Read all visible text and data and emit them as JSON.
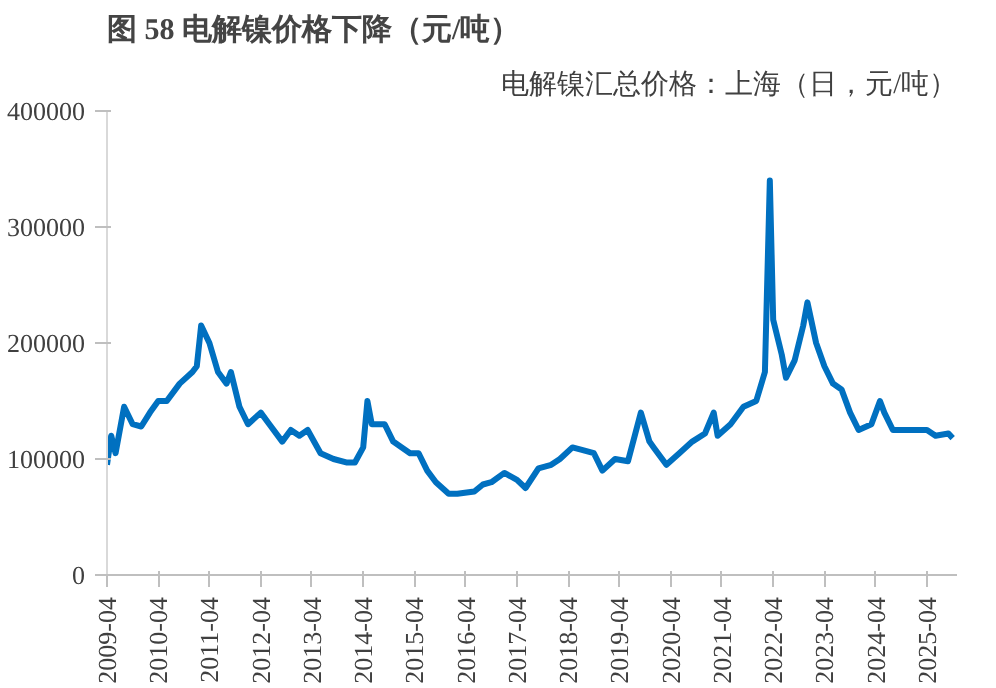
{
  "chart_data": {
    "type": "line",
    "title": "图 58  电解镍价格下降（元/吨）",
    "subtitle": "电解镍汇总价格：上海（日，元/吨）",
    "x": [
      "2009-04-01",
      "2009-05-01",
      "2009-06-01",
      "2009-08-01",
      "2009-10-01",
      "2009-12-01",
      "2010-02-01",
      "2010-04-01",
      "2010-06-01",
      "2010-09-01",
      "2010-12-01",
      "2011-01-01",
      "2011-02-01",
      "2011-04-01",
      "2011-06-01",
      "2011-08-01",
      "2011-09-01",
      "2011-11-01",
      "2012-01-01",
      "2012-04-01",
      "2012-06-01",
      "2012-09-01",
      "2012-11-01",
      "2013-01-01",
      "2013-03-01",
      "2013-06-01",
      "2013-09-01",
      "2013-12-01",
      "2014-02-01",
      "2014-04-01",
      "2014-05-01",
      "2014-06-01",
      "2014-09-01",
      "2014-11-01",
      "2015-01-01",
      "2015-03-01",
      "2015-05-01",
      "2015-07-01",
      "2015-09-01",
      "2015-12-01",
      "2016-02-01",
      "2016-06-01",
      "2016-08-01",
      "2016-10-01",
      "2017-01-01",
      "2017-04-01",
      "2017-06-01",
      "2017-09-01",
      "2017-12-01",
      "2018-02-01",
      "2018-05-01",
      "2018-07-01",
      "2018-10-01",
      "2018-12-01",
      "2019-03-01",
      "2019-06-01",
      "2019-09-01",
      "2019-11-01",
      "2019-12-01",
      "2020-03-01",
      "2020-06-01",
      "2020-09-01",
      "2020-12-01",
      "2021-02-01",
      "2021-03-01",
      "2021-06-01",
      "2021-09-01",
      "2021-12-01",
      "2022-02-01",
      "2022-03-08",
      "2022-04-01",
      "2022-06-01",
      "2022-07-01",
      "2022-09-01",
      "2022-11-01",
      "2022-12-01",
      "2023-02-01",
      "2023-04-01",
      "2023-06-01",
      "2023-08-01",
      "2023-10-01",
      "2023-12-01",
      "2024-03-01",
      "2024-05-01",
      "2024-06-01",
      "2024-08-01",
      "2024-11-01",
      "2025-01-01",
      "2025-04-01",
      "2025-06-01",
      "2025-09-01",
      "2025-10-01"
    ],
    "series": [
      {
        "color": "#0070c0",
        "values": [
          95000,
          120000,
          105000,
          145000,
          130000,
          128000,
          140000,
          150000,
          150000,
          165000,
          175000,
          180000,
          215000,
          200000,
          175000,
          165000,
          175000,
          145000,
          130000,
          140000,
          130000,
          115000,
          125000,
          120000,
          125000,
          105000,
          100000,
          97000,
          97000,
          110000,
          150000,
          130000,
          130000,
          115000,
          110000,
          105000,
          105000,
          90000,
          80000,
          70000,
          70000,
          72000,
          78000,
          80000,
          88000,
          82000,
          75000,
          92000,
          95000,
          100000,
          110000,
          108000,
          105000,
          90000,
          100000,
          98000,
          140000,
          115000,
          110000,
          95000,
          105000,
          115000,
          122000,
          140000,
          120000,
          130000,
          145000,
          150000,
          175000,
          340000,
          220000,
          190000,
          170000,
          185000,
          215000,
          235000,
          200000,
          180000,
          165000,
          160000,
          140000,
          125000,
          130000,
          150000,
          140000,
          125000,
          125000,
          125000,
          125000,
          120000,
          122000,
          118000
        ]
      }
    ],
    "xlim": [
      "2009-04-01",
      "2025-11-01"
    ],
    "xticks": [
      "2009-04",
      "2010-04",
      "2011-04",
      "2012-04",
      "2013-04",
      "2014-04",
      "2015-04",
      "2016-04",
      "2017-04",
      "2018-04",
      "2019-04",
      "2020-04",
      "2021-04",
      "2022-04",
      "2023-04",
      "2024-04",
      "2025-04"
    ],
    "ylim": [
      0,
      400000
    ],
    "yticks": [
      0,
      100000,
      200000,
      300000,
      400000
    ],
    "line_style": "solid"
  }
}
